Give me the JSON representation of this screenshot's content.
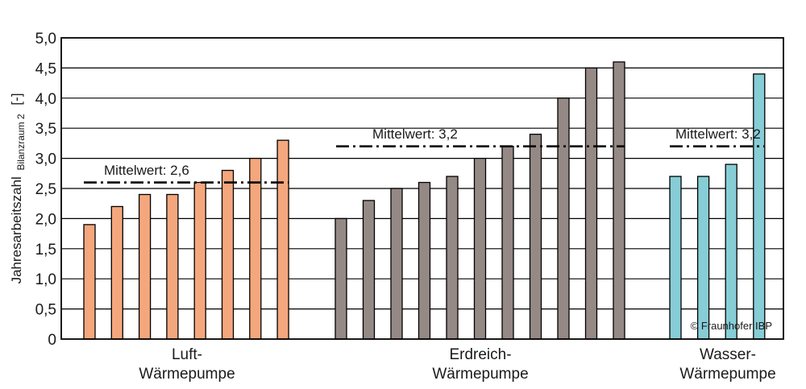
{
  "chart_data": {
    "type": "bar",
    "ylabel": "Jahresarbeitszahl",
    "ylabel_sub": "Bilanzraum 2",
    "ylabel_unit": "[-]",
    "ylim": [
      0,
      5
    ],
    "ytick_labels": [
      "0",
      "0,5",
      "1,0",
      "1,5",
      "2,0",
      "2,5",
      "3,0",
      "3,5",
      "4,0",
      "4,5",
      "5,0"
    ],
    "grid": true,
    "groups": [
      {
        "label_line1": "Luft-",
        "label_line2": "Wärmepumpe",
        "color": "#F4A77D",
        "values": [
          1.9,
          2.2,
          2.4,
          2.4,
          2.6,
          2.8,
          3.0,
          3.3
        ],
        "mean": 2.6,
        "mean_label": "Mittelwert: 2,6"
      },
      {
        "label_line1": "Erdreich-",
        "label_line2": "Wärmepumpe",
        "color": "#958985",
        "values": [
          2.0,
          2.3,
          2.5,
          2.6,
          2.7,
          3.0,
          3.2,
          3.4,
          4.0,
          4.5,
          4.6
        ],
        "mean": 3.2,
        "mean_label": "Mittelwert: 3,2"
      },
      {
        "label_line1": "Wasser-",
        "label_line2": "Wärmepumpe",
        "color": "#86CDD6",
        "values": [
          2.7,
          2.7,
          2.9,
          4.4
        ],
        "mean": 3.2,
        "mean_label": "Mittelwert: 3,2"
      }
    ],
    "copyright": "© Fraunhofer IBP"
  }
}
